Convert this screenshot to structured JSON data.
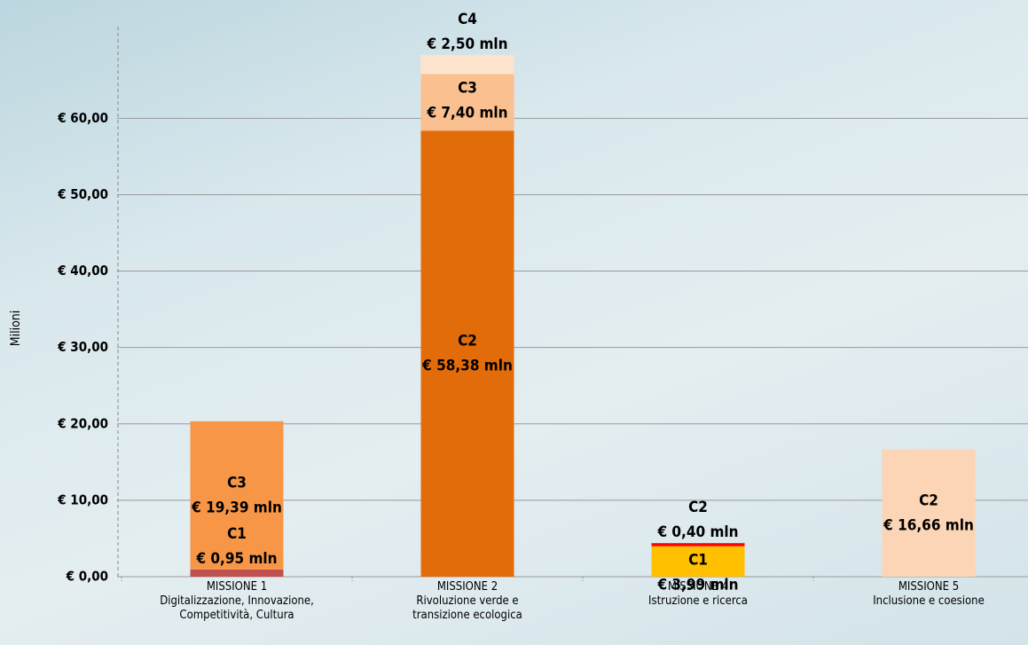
{
  "chart_data": {
    "type": "stacked_bar",
    "y_axis_label": "Milioni",
    "categories": [
      "MISSIONE 1\nDigitalizzazione, Innovazione,\nCompetitività, Cultura",
      "MISSIONE 2\nRivoluzione verde e\ntransizione ecologica",
      "MISSIONE 4\nIstruzione e ricerca",
      "MISSIONE 5\nInclusione e coesione"
    ],
    "series": [
      {
        "name": "C1",
        "values": [
          0.95,
          null,
          3.99,
          null
        ],
        "value_labels": [
          "€ 0,95 mln",
          null,
          "€ 3,99 mln",
          null
        ],
        "colors": [
          "#c0504d",
          null,
          "#ffc000",
          null
        ]
      },
      {
        "name": "C2",
        "values": [
          null,
          58.38,
          0.4,
          16.66
        ],
        "value_labels": [
          null,
          "€ 58,38 mln",
          "€ 0,40 mln",
          "€ 16,66  mln"
        ],
        "colors": [
          null,
          "#e36c0a",
          "#ff0000",
          "#fbd5b5"
        ]
      },
      {
        "name": "C3",
        "values": [
          19.39,
          7.4,
          null,
          null
        ],
        "value_labels": [
          "€ 19,39 mln",
          "€ 7,40 mln",
          null,
          null
        ],
        "colors": [
          "#f79646",
          "#fac090",
          null,
          null
        ]
      },
      {
        "name": "C4",
        "values": [
          null,
          2.5,
          null,
          null
        ],
        "value_labels": [
          null,
          "€ 2,50 mln",
          null,
          null
        ],
        "colors": [
          null,
          "#fde3cc",
          null,
          null
        ]
      }
    ],
    "ylim": [
      0,
      72
    ],
    "yticks": [
      {
        "value": 0,
        "label": "€ 0,00"
      },
      {
        "value": 10,
        "label": "€ 10,00"
      },
      {
        "value": 20,
        "label": "€ 20,00"
      },
      {
        "value": 30,
        "label": "€ 30,00"
      },
      {
        "value": 40,
        "label": "€ 40,00"
      },
      {
        "value": 50,
        "label": "€ 50,00"
      },
      {
        "value": 60,
        "label": "€ 60,00"
      }
    ],
    "grid": true
  }
}
